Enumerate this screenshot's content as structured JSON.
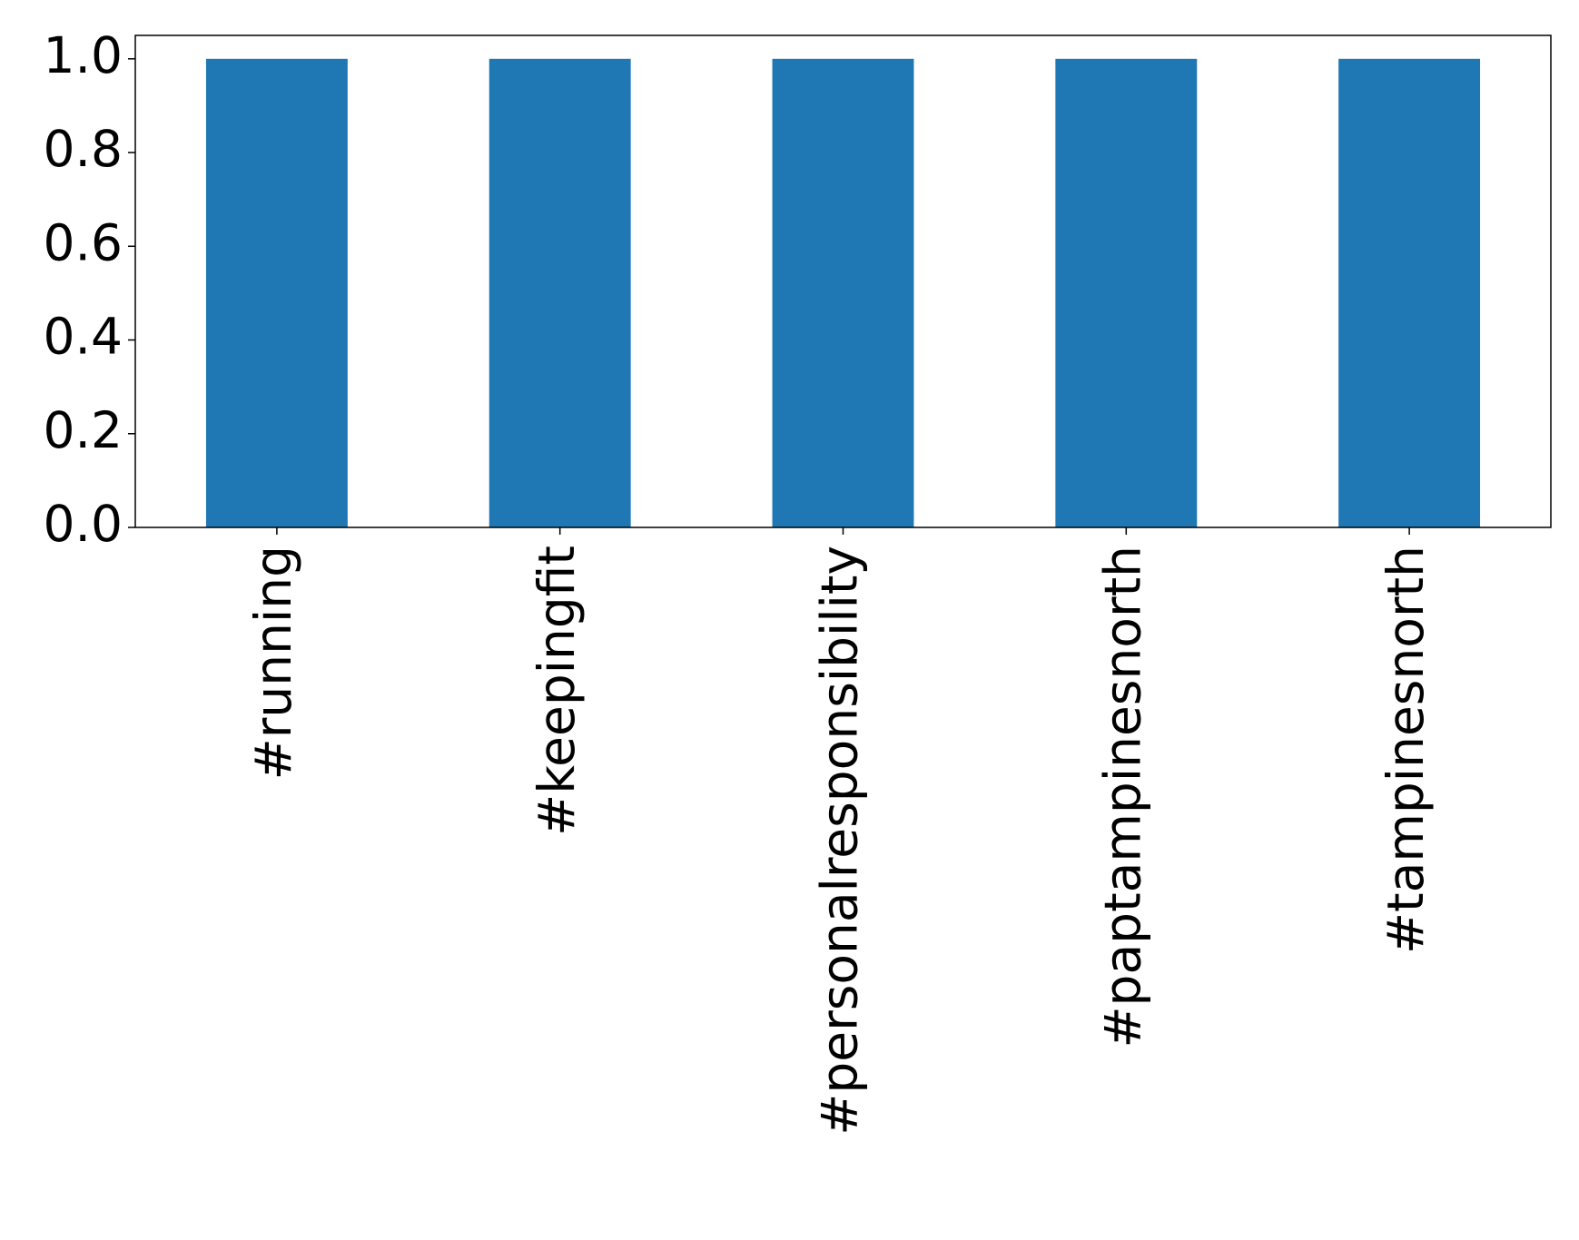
{
  "chart_data": {
    "type": "bar",
    "categories": [
      "#running",
      "#keepingfit",
      "#personalresponsibility",
      "#paptampinesnorth",
      "#tampinesnorth"
    ],
    "values": [
      1,
      1,
      1,
      1,
      1
    ],
    "color": "#1f77b4",
    "ylim": [
      0,
      1.05
    ],
    "yticks": [
      {
        "value": 0,
        "label": "0.0"
      },
      0.2,
      0.4,
      0.6,
      0.8,
      {
        "value": 1,
        "label": "1.0"
      }
    ],
    "grid": false
  }
}
